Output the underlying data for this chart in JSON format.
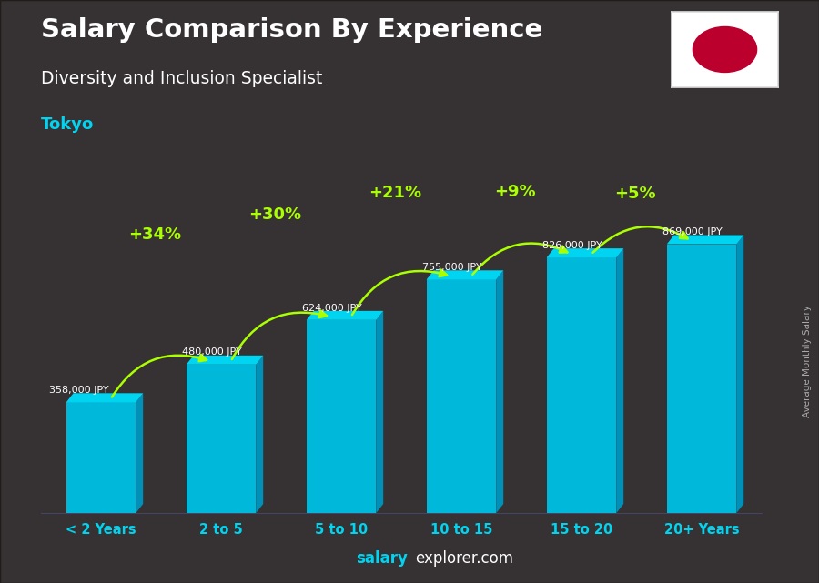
{
  "title": "Salary Comparison By Experience",
  "subtitle": "Diversity and Inclusion Specialist",
  "city": "Tokyo",
  "categories": [
    "< 2 Years",
    "2 to 5",
    "5 to 10",
    "10 to 15",
    "15 to 20",
    "20+ Years"
  ],
  "values": [
    358000,
    480000,
    624000,
    755000,
    826000,
    869000
  ],
  "value_labels": [
    "358,000 JPY",
    "480,000 JPY",
    "624,000 JPY",
    "755,000 JPY",
    "826,000 JPY",
    "869,000 JPY"
  ],
  "pct_changes": [
    null,
    "+34%",
    "+30%",
    "+21%",
    "+9%",
    "+5%"
  ],
  "bar_color_main": "#00b8d9",
  "bar_color_right": "#0090b8",
  "bar_color_top": "#00d4f0",
  "bg_color": "#3a3020",
  "title_color": "#ffffff",
  "subtitle_color": "#ffffff",
  "city_color": "#00d4f0",
  "value_label_color": "#ffffff",
  "pct_color": "#aaff00",
  "arrow_color": "#aaff00",
  "tick_label_color": "#00d4f0",
  "side_label": "Average Monthly Salary",
  "side_label_color": "#aaaaaa",
  "footer_salary_color": "#ffffff",
  "footer_explorer_color": "#ffffff",
  "ylim_max": 980000,
  "figsize": [
    9.0,
    6.41
  ],
  "dpi": 100
}
